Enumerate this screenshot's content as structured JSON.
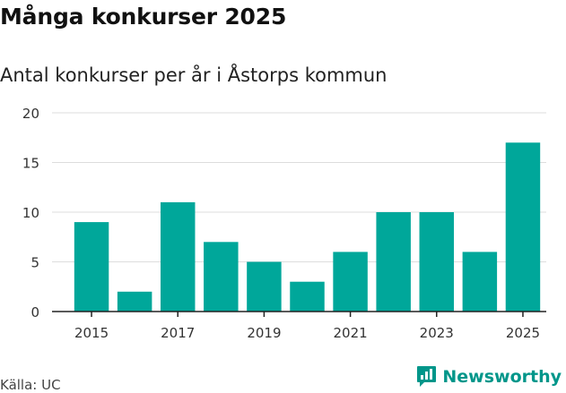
{
  "header": {
    "title": "Många konkurser 2025",
    "subtitle": "Antal konkurser per år i Åstorps kommun"
  },
  "footer": {
    "source": "Källa: UC",
    "brand": "Newsworthy"
  },
  "colors": {
    "bar": "#00a79a",
    "grid": "#dddddd",
    "axis": "#222222",
    "brand": "#00968a"
  },
  "chart_data": {
    "type": "bar",
    "categories": [
      "2015",
      "2016",
      "2017",
      "2018",
      "2019",
      "2020",
      "2021",
      "2022",
      "2023",
      "2024",
      "2025"
    ],
    "values": [
      9,
      2,
      11,
      7,
      5,
      3,
      6,
      10,
      10,
      6,
      17
    ],
    "x_tick_labels": [
      "2015",
      "2017",
      "2019",
      "2021",
      "2023",
      "2025"
    ],
    "y_ticks": [
      0,
      5,
      10,
      15,
      20
    ],
    "ylim": [
      0,
      20
    ],
    "title": "Många konkurser 2025",
    "subtitle": "Antal konkurser per år i Åstorps kommun",
    "xlabel": "",
    "ylabel": "",
    "grid": true,
    "legend": "none"
  }
}
